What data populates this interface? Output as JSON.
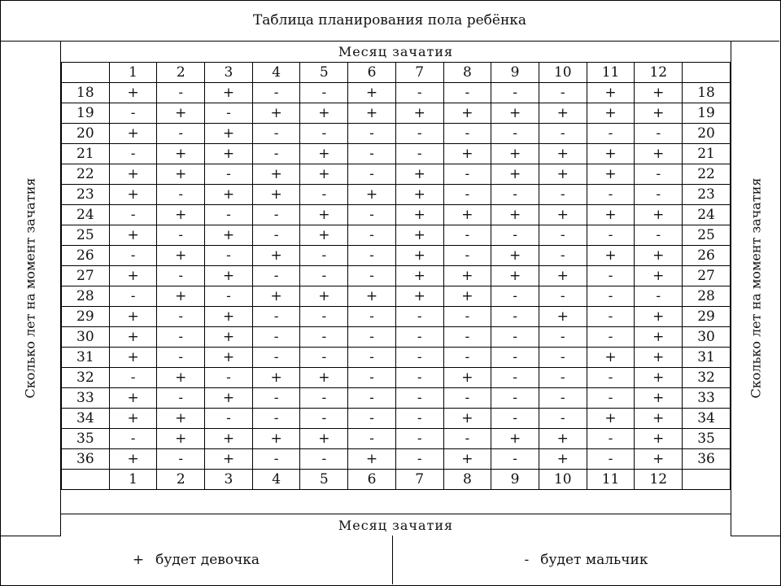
{
  "title": "Таблица планирования пола ребёнка",
  "side_label": "Сколько лет на момент зачатия",
  "month_axis_label": "Месяц   зачатия",
  "months": [
    "1",
    "2",
    "3",
    "4",
    "5",
    "6",
    "7",
    "8",
    "9",
    "10",
    "11",
    "12"
  ],
  "rows": [
    {
      "age": "18",
      "v": [
        "+",
        "-",
        "+",
        "-",
        "-",
        "+",
        "-",
        "-",
        "-",
        "-",
        "+",
        "+"
      ]
    },
    {
      "age": "19",
      "v": [
        "-",
        "+",
        "-",
        "+",
        "+",
        "+",
        "+",
        "+",
        "+",
        "+",
        "+",
        "+"
      ]
    },
    {
      "age": "20",
      "v": [
        "+",
        "-",
        "+",
        "-",
        "-",
        "-",
        "-",
        "-",
        "-",
        "-",
        "-",
        "-"
      ]
    },
    {
      "age": "21",
      "v": [
        "-",
        "+",
        "+",
        "-",
        "+",
        "-",
        "-",
        "+",
        "+",
        "+",
        "+",
        "+"
      ]
    },
    {
      "age": "22",
      "v": [
        "+",
        "+",
        "-",
        "+",
        "+",
        "-",
        "+",
        "-",
        "+",
        "+",
        "+",
        "-"
      ]
    },
    {
      "age": "23",
      "v": [
        "+",
        "-",
        "+",
        "+",
        "-",
        "+",
        "+",
        "-",
        "-",
        "-",
        "-",
        "-"
      ]
    },
    {
      "age": "24",
      "v": [
        "-",
        "+",
        "-",
        "-",
        "+",
        "-",
        "+",
        "+",
        "+",
        "+",
        "+",
        "+"
      ]
    },
    {
      "age": "25",
      "v": [
        "+",
        "-",
        "+",
        "-",
        "+",
        "-",
        "+",
        "-",
        "-",
        "-",
        "-",
        "-"
      ]
    },
    {
      "age": "26",
      "v": [
        "-",
        "+",
        "-",
        "+",
        "-",
        "-",
        "+",
        "-",
        "+",
        "-",
        "+",
        "+"
      ]
    },
    {
      "age": "27",
      "v": [
        "+",
        "-",
        "+",
        "-",
        "-",
        "-",
        "+",
        "+",
        "+",
        "+",
        "-",
        "+"
      ]
    },
    {
      "age": "28",
      "v": [
        "-",
        "+",
        "-",
        "+",
        "+",
        "+",
        "+",
        "+",
        "-",
        "-",
        "-",
        "-"
      ]
    },
    {
      "age": "29",
      "v": [
        "+",
        "-",
        "+",
        "-",
        "-",
        "-",
        "-",
        "-",
        "-",
        "+",
        "-",
        "+"
      ]
    },
    {
      "age": "30",
      "v": [
        "+",
        "-",
        "+",
        "-",
        "-",
        "-",
        "-",
        "-",
        "-",
        "-",
        "-",
        "+"
      ]
    },
    {
      "age": "31",
      "v": [
        "+",
        "-",
        "+",
        "-",
        "-",
        "-",
        "-",
        "-",
        "-",
        "-",
        "+",
        "+"
      ]
    },
    {
      "age": "32",
      "v": [
        "-",
        "+",
        "-",
        "+",
        "+",
        "-",
        "-",
        "+",
        "-",
        "-",
        "-",
        "+"
      ]
    },
    {
      "age": "33",
      "v": [
        "+",
        "-",
        "+",
        "-",
        "-",
        "-",
        "-",
        "-",
        "-",
        "-",
        "-",
        "+"
      ]
    },
    {
      "age": "34",
      "v": [
        "+",
        "+",
        "-",
        "-",
        "-",
        "-",
        "-",
        "+",
        "-",
        "-",
        "+",
        "+"
      ]
    },
    {
      "age": "35",
      "v": [
        "-",
        "+",
        "+",
        "+",
        "+",
        "-",
        "-",
        "-",
        "+",
        "+",
        "-",
        "+"
      ]
    },
    {
      "age": "36",
      "v": [
        "+",
        "-",
        "+",
        "-",
        "-",
        "+",
        "-",
        "+",
        "-",
        "+",
        "-",
        "+"
      ]
    }
  ],
  "legend": {
    "girl_symbol": "+",
    "girl_label": "будет девочка",
    "boy_symbol": "-",
    "boy_label": "будет мальчик"
  }
}
